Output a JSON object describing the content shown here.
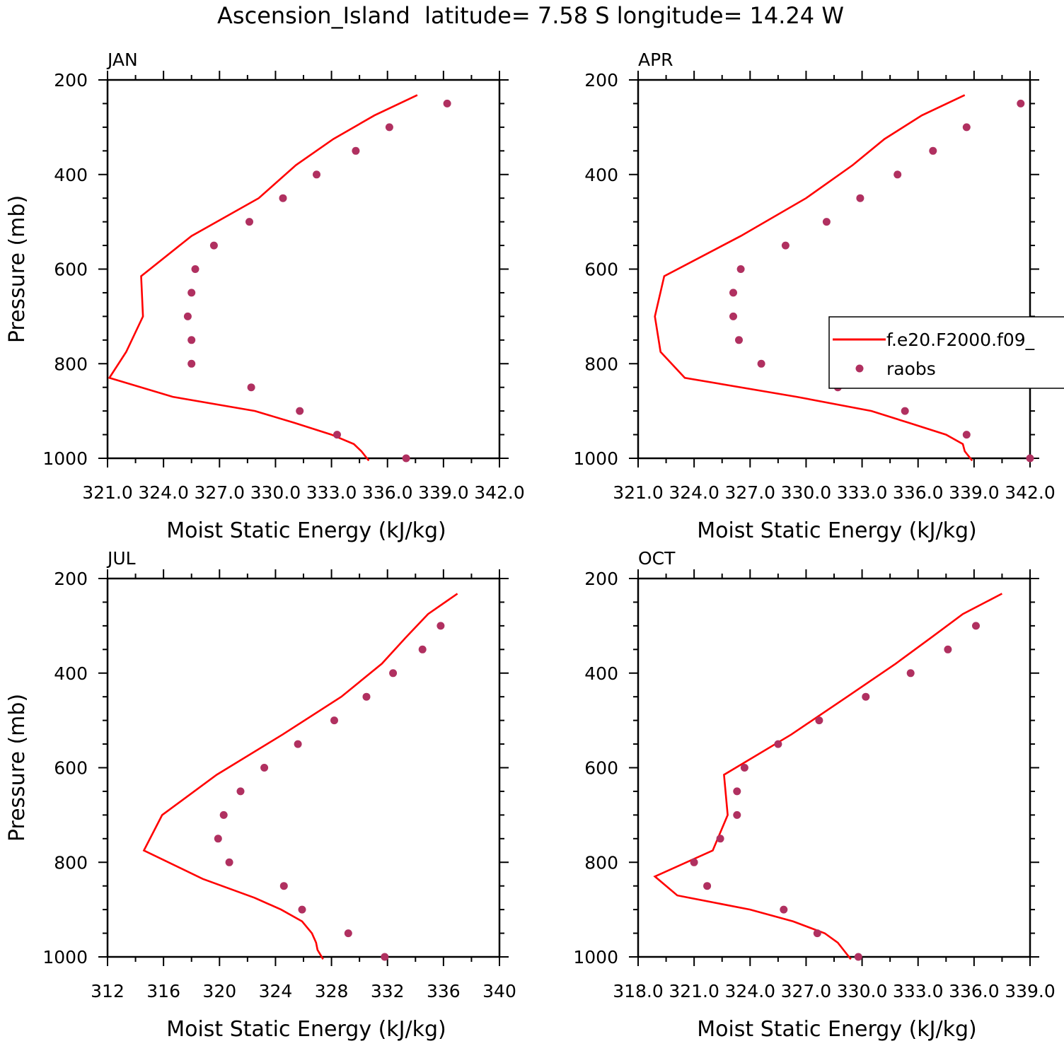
{
  "title": "Ascension_Island  latitude= 7.58 S longitude= 14.24 W",
  "colors": {
    "model": "#ff0000",
    "obs": "#b03060",
    "axes": "#000000"
  },
  "legend": {
    "model_label": "f.e20.F2000.f09_",
    "obs_label": "raobs",
    "placement": "right-middle"
  },
  "chart_data": [
    {
      "type": "line",
      "panel": "JAN",
      "xlabel": "Moist Static Energy (kJ/kg)",
      "ylabel": "Pressure (mb)",
      "xlim": [
        321.0,
        342.0
      ],
      "ylim": [
        1000,
        200
      ],
      "xticks": [
        321.0,
        324.0,
        327.0,
        330.0,
        333.0,
        336.0,
        339.0,
        342.0
      ],
      "xtick_labels": [
        "321.0",
        "324.0",
        "327.0",
        "330.0",
        "333.0",
        "336.0",
        "339.0",
        "342.0"
      ],
      "yticks": [
        200,
        400,
        600,
        800,
        1000
      ],
      "series": [
        {
          "name": "f.e20.F2000.f09_",
          "style": "line",
          "values": [
            [
              337.6,
              232
            ],
            [
              335.3,
              275
            ],
            [
              333.1,
              325
            ],
            [
              331.1,
              380
            ],
            [
              329.1,
              450
            ],
            [
              325.5,
              530
            ],
            [
              322.8,
              615
            ],
            [
              322.9,
              700
            ],
            [
              322.0,
              775
            ],
            [
              321.1,
              830
            ],
            [
              324.5,
              870
            ],
            [
              328.9,
              900
            ],
            [
              331.0,
              925
            ],
            [
              333.0,
              950
            ],
            [
              334.2,
              970
            ],
            [
              334.6,
              985
            ],
            [
              335.0,
              1005
            ]
          ]
        },
        {
          "name": "raobs",
          "style": "marker",
          "values": [
            [
              339.2,
              250
            ],
            [
              336.1,
              300
            ],
            [
              334.3,
              350
            ],
            [
              332.2,
              400
            ],
            [
              330.4,
              450
            ],
            [
              328.6,
              500
            ],
            [
              326.7,
              550
            ],
            [
              325.7,
              600
            ],
            [
              325.5,
              650
            ],
            [
              325.3,
              700
            ],
            [
              325.5,
              750
            ],
            [
              325.5,
              800
            ],
            [
              328.7,
              850
            ],
            [
              331.3,
              900
            ],
            [
              333.3,
              950
            ],
            [
              337.0,
              1000
            ]
          ]
        }
      ]
    },
    {
      "type": "line",
      "panel": "APR",
      "xlabel": "Moist Static Energy (kJ/kg)",
      "ylabel": "",
      "xlim": [
        321.0,
        342.0
      ],
      "ylim": [
        1000,
        200
      ],
      "xticks": [
        321.0,
        324.0,
        327.0,
        330.0,
        333.0,
        336.0,
        339.0,
        342.0
      ],
      "xtick_labels": [
        "321.0",
        "324.0",
        "327.0",
        "330.0",
        "333.0",
        "336.0",
        "339.0",
        "342.0"
      ],
      "yticks": [
        200,
        400,
        600,
        800,
        1000
      ],
      "series": [
        {
          "name": "f.e20.F2000.f09_",
          "style": "line",
          "values": [
            [
              338.5,
              232
            ],
            [
              336.2,
              275
            ],
            [
              334.2,
              325
            ],
            [
              332.5,
              380
            ],
            [
              330.0,
              450
            ],
            [
              326.5,
              530
            ],
            [
              322.4,
              615
            ],
            [
              321.9,
              700
            ],
            [
              322.2,
              775
            ],
            [
              323.5,
              830
            ],
            [
              329.5,
              870
            ],
            [
              333.5,
              900
            ],
            [
              335.5,
              925
            ],
            [
              337.5,
              950
            ],
            [
              338.4,
              970
            ],
            [
              338.5,
              985
            ],
            [
              338.9,
              1005
            ]
          ]
        },
        {
          "name": "raobs",
          "style": "marker",
          "values": [
            [
              341.5,
              250
            ],
            [
              338.6,
              300
            ],
            [
              336.8,
              350
            ],
            [
              334.9,
              400
            ],
            [
              332.9,
              450
            ],
            [
              331.1,
              500
            ],
            [
              328.9,
              550
            ],
            [
              326.5,
              600
            ],
            [
              326.1,
              650
            ],
            [
              326.1,
              700
            ],
            [
              326.4,
              750
            ],
            [
              327.6,
              800
            ],
            [
              331.7,
              850
            ],
            [
              335.3,
              900
            ],
            [
              338.6,
              950
            ],
            [
              342.0,
              1000
            ]
          ]
        }
      ]
    },
    {
      "type": "line",
      "panel": "JUL",
      "xlabel": "Moist Static Energy (kJ/kg)",
      "ylabel": "Pressure (mb)",
      "xlim": [
        312,
        340
      ],
      "ylim": [
        1000,
        200
      ],
      "xticks": [
        312,
        316,
        320,
        324,
        328,
        332,
        336,
        340
      ],
      "xtick_labels": [
        "312",
        "316",
        "320",
        "324",
        "328",
        "332",
        "336",
        "340"
      ],
      "yticks": [
        200,
        400,
        600,
        800,
        1000
      ],
      "series": [
        {
          "name": "f.e20.F2000.f09_",
          "style": "line",
          "values": [
            [
              337.0,
              232
            ],
            [
              334.9,
              275
            ],
            [
              333.3,
              325
            ],
            [
              331.6,
              380
            ],
            [
              328.7,
              450
            ],
            [
              324.5,
              530
            ],
            [
              319.8,
              615
            ],
            [
              315.9,
              700
            ],
            [
              314.6,
              775
            ],
            [
              318.8,
              835
            ],
            [
              322.5,
              875
            ],
            [
              324.4,
              900
            ],
            [
              325.9,
              925
            ],
            [
              326.6,
              950
            ],
            [
              326.9,
              970
            ],
            [
              327.0,
              985
            ],
            [
              327.4,
              1005
            ]
          ]
        },
        {
          "name": "raobs",
          "style": "marker",
          "values": [
            [
              335.8,
              300
            ],
            [
              334.5,
              350
            ],
            [
              332.4,
              400
            ],
            [
              330.5,
              450
            ],
            [
              328.2,
              500
            ],
            [
              325.6,
              550
            ],
            [
              323.2,
              600
            ],
            [
              321.5,
              650
            ],
            [
              320.3,
              700
            ],
            [
              319.9,
              750
            ],
            [
              320.7,
              800
            ],
            [
              324.6,
              850
            ],
            [
              325.9,
              900
            ],
            [
              329.2,
              950
            ],
            [
              331.8,
              1000
            ]
          ]
        }
      ]
    },
    {
      "type": "line",
      "panel": "OCT",
      "xlabel": "Moist Static Energy (kJ/kg)",
      "ylabel": "",
      "xlim": [
        318.0,
        339.0
      ],
      "ylim": [
        1000,
        200
      ],
      "xticks": [
        318.0,
        321.0,
        324.0,
        327.0,
        330.0,
        333.0,
        336.0,
        339.0
      ],
      "xtick_labels": [
        "318.0",
        "321.0",
        "324.0",
        "327.0",
        "330.0",
        "333.0",
        "336.0",
        "339.0"
      ],
      "yticks": [
        200,
        400,
        600,
        800,
        1000
      ],
      "series": [
        {
          "name": "f.e20.F2000.f09_",
          "style": "line",
          "values": [
            [
              337.5,
              232
            ],
            [
              335.4,
              275
            ],
            [
              333.7,
              325
            ],
            [
              331.8,
              380
            ],
            [
              329.2,
              450
            ],
            [
              326.2,
              530
            ],
            [
              322.6,
              615
            ],
            [
              322.8,
              700
            ],
            [
              322.0,
              775
            ],
            [
              318.9,
              830
            ],
            [
              320.1,
              870
            ],
            [
              324.0,
              900
            ],
            [
              326.3,
              925
            ],
            [
              328.0,
              950
            ],
            [
              328.7,
              970
            ],
            [
              329.0,
              985
            ],
            [
              329.4,
              1005
            ]
          ]
        },
        {
          "name": "raobs",
          "style": "marker",
          "values": [
            [
              336.1,
              300
            ],
            [
              334.6,
              350
            ],
            [
              332.6,
              400
            ],
            [
              330.2,
              450
            ],
            [
              327.7,
              500
            ],
            [
              325.5,
              550
            ],
            [
              323.7,
              600
            ],
            [
              323.3,
              650
            ],
            [
              323.3,
              700
            ],
            [
              322.4,
              750
            ],
            [
              321.0,
              800
            ],
            [
              321.7,
              850
            ],
            [
              325.8,
              900
            ],
            [
              327.6,
              950
            ],
            [
              329.8,
              1000
            ]
          ]
        }
      ]
    }
  ]
}
